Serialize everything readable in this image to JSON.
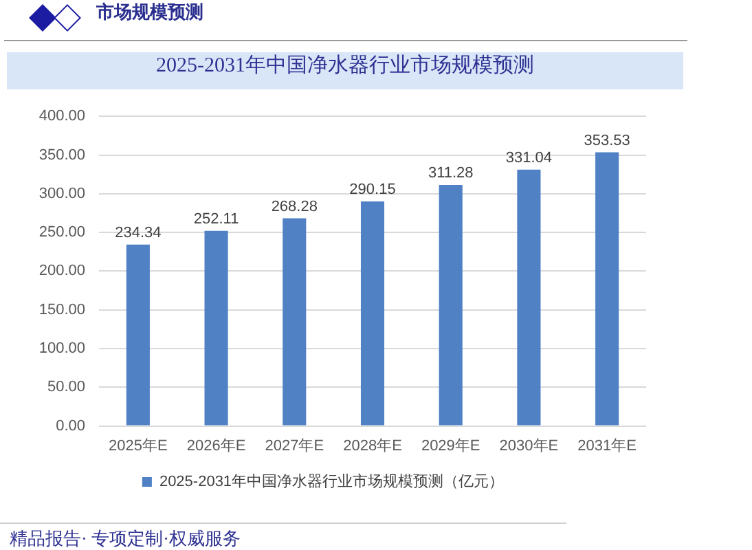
{
  "chart_data": {
    "type": "bar",
    "title": "2025-2031年中国净水器行业市场规模预测",
    "annotations": [
      "市场规模预测",
      "精品报告· 专项定制·权威服务"
    ],
    "categories": [
      "2025年E",
      "2026年E",
      "2027年E",
      "2028年E",
      "2029年E",
      "2030年E",
      "2031年E"
    ],
    "series": [
      {
        "name": "2025-2031年中国净水器行业市场规模预测（亿元）",
        "color": "#4f81c4",
        "values": [
          234.34,
          252.11,
          268.28,
          290.15,
          311.28,
          331.04,
          353.53
        ]
      }
    ],
    "ylim": [
      0,
      400
    ],
    "yticks": [
      {
        "value": 0,
        "label": "0.00"
      },
      {
        "value": 50,
        "label": "50.00"
      },
      {
        "value": 100,
        "label": "100.00"
      },
      {
        "value": 150,
        "label": "150.00"
      },
      {
        "value": 200,
        "label": "200.00"
      },
      {
        "value": 250,
        "label": "250.00"
      },
      {
        "value": 300,
        "label": "300.00"
      },
      {
        "value": 350,
        "label": "350.00"
      },
      {
        "value": 400,
        "label": "400.00"
      }
    ],
    "grid": "y",
    "legend": "bottom",
    "data_labels": true
  }
}
